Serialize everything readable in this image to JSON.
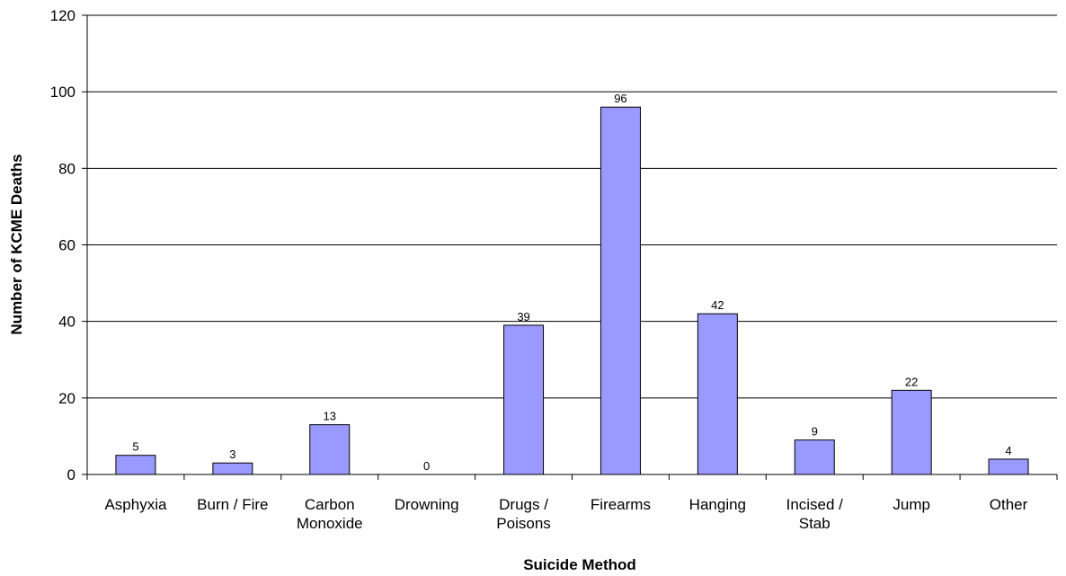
{
  "chart_data": {
    "type": "bar",
    "categories": [
      [
        "Asphyxia"
      ],
      [
        "Burn / Fire"
      ],
      [
        "Carbon",
        "Monoxide"
      ],
      [
        "Drowning"
      ],
      [
        "Drugs /",
        "Poisons"
      ],
      [
        "Firearms"
      ],
      [
        "Hanging"
      ],
      [
        "Incised /",
        "Stab"
      ],
      [
        "Jump"
      ],
      [
        "Other"
      ]
    ],
    "values": [
      5,
      3,
      13,
      0,
      39,
      96,
      42,
      9,
      22,
      4
    ],
    "xlabel": "Suicide Method",
    "ylabel": "Number of KCME Deaths",
    "ylim": [
      0,
      120
    ],
    "yticks": [
      0,
      20,
      40,
      60,
      80,
      100,
      120
    ],
    "grid": true,
    "bar_color": "#9999ff",
    "legend": "none"
  }
}
